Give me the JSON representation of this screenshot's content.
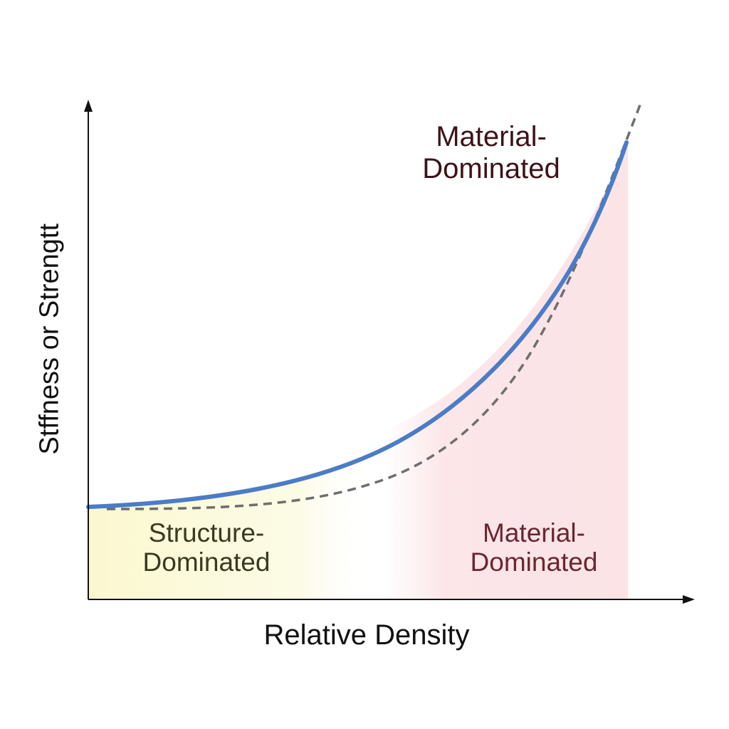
{
  "diagram": {
    "y_axis_label": "Stffness or Strengtt",
    "x_axis_label": "Relative Density",
    "top_label": {
      "line1": "Material-",
      "line2": "Dominated"
    },
    "regions": [
      {
        "line1": "Structure-",
        "line2": "Dominated",
        "color": "#fbf8cf"
      },
      {
        "line1": "Material-",
        "line2": "Dominated",
        "color": "#fbe3e6"
      }
    ],
    "curves": [
      {
        "style": "solid",
        "color": "#4a7cc7"
      },
      {
        "style": "dashed",
        "color": "#6e6e6e"
      }
    ]
  }
}
